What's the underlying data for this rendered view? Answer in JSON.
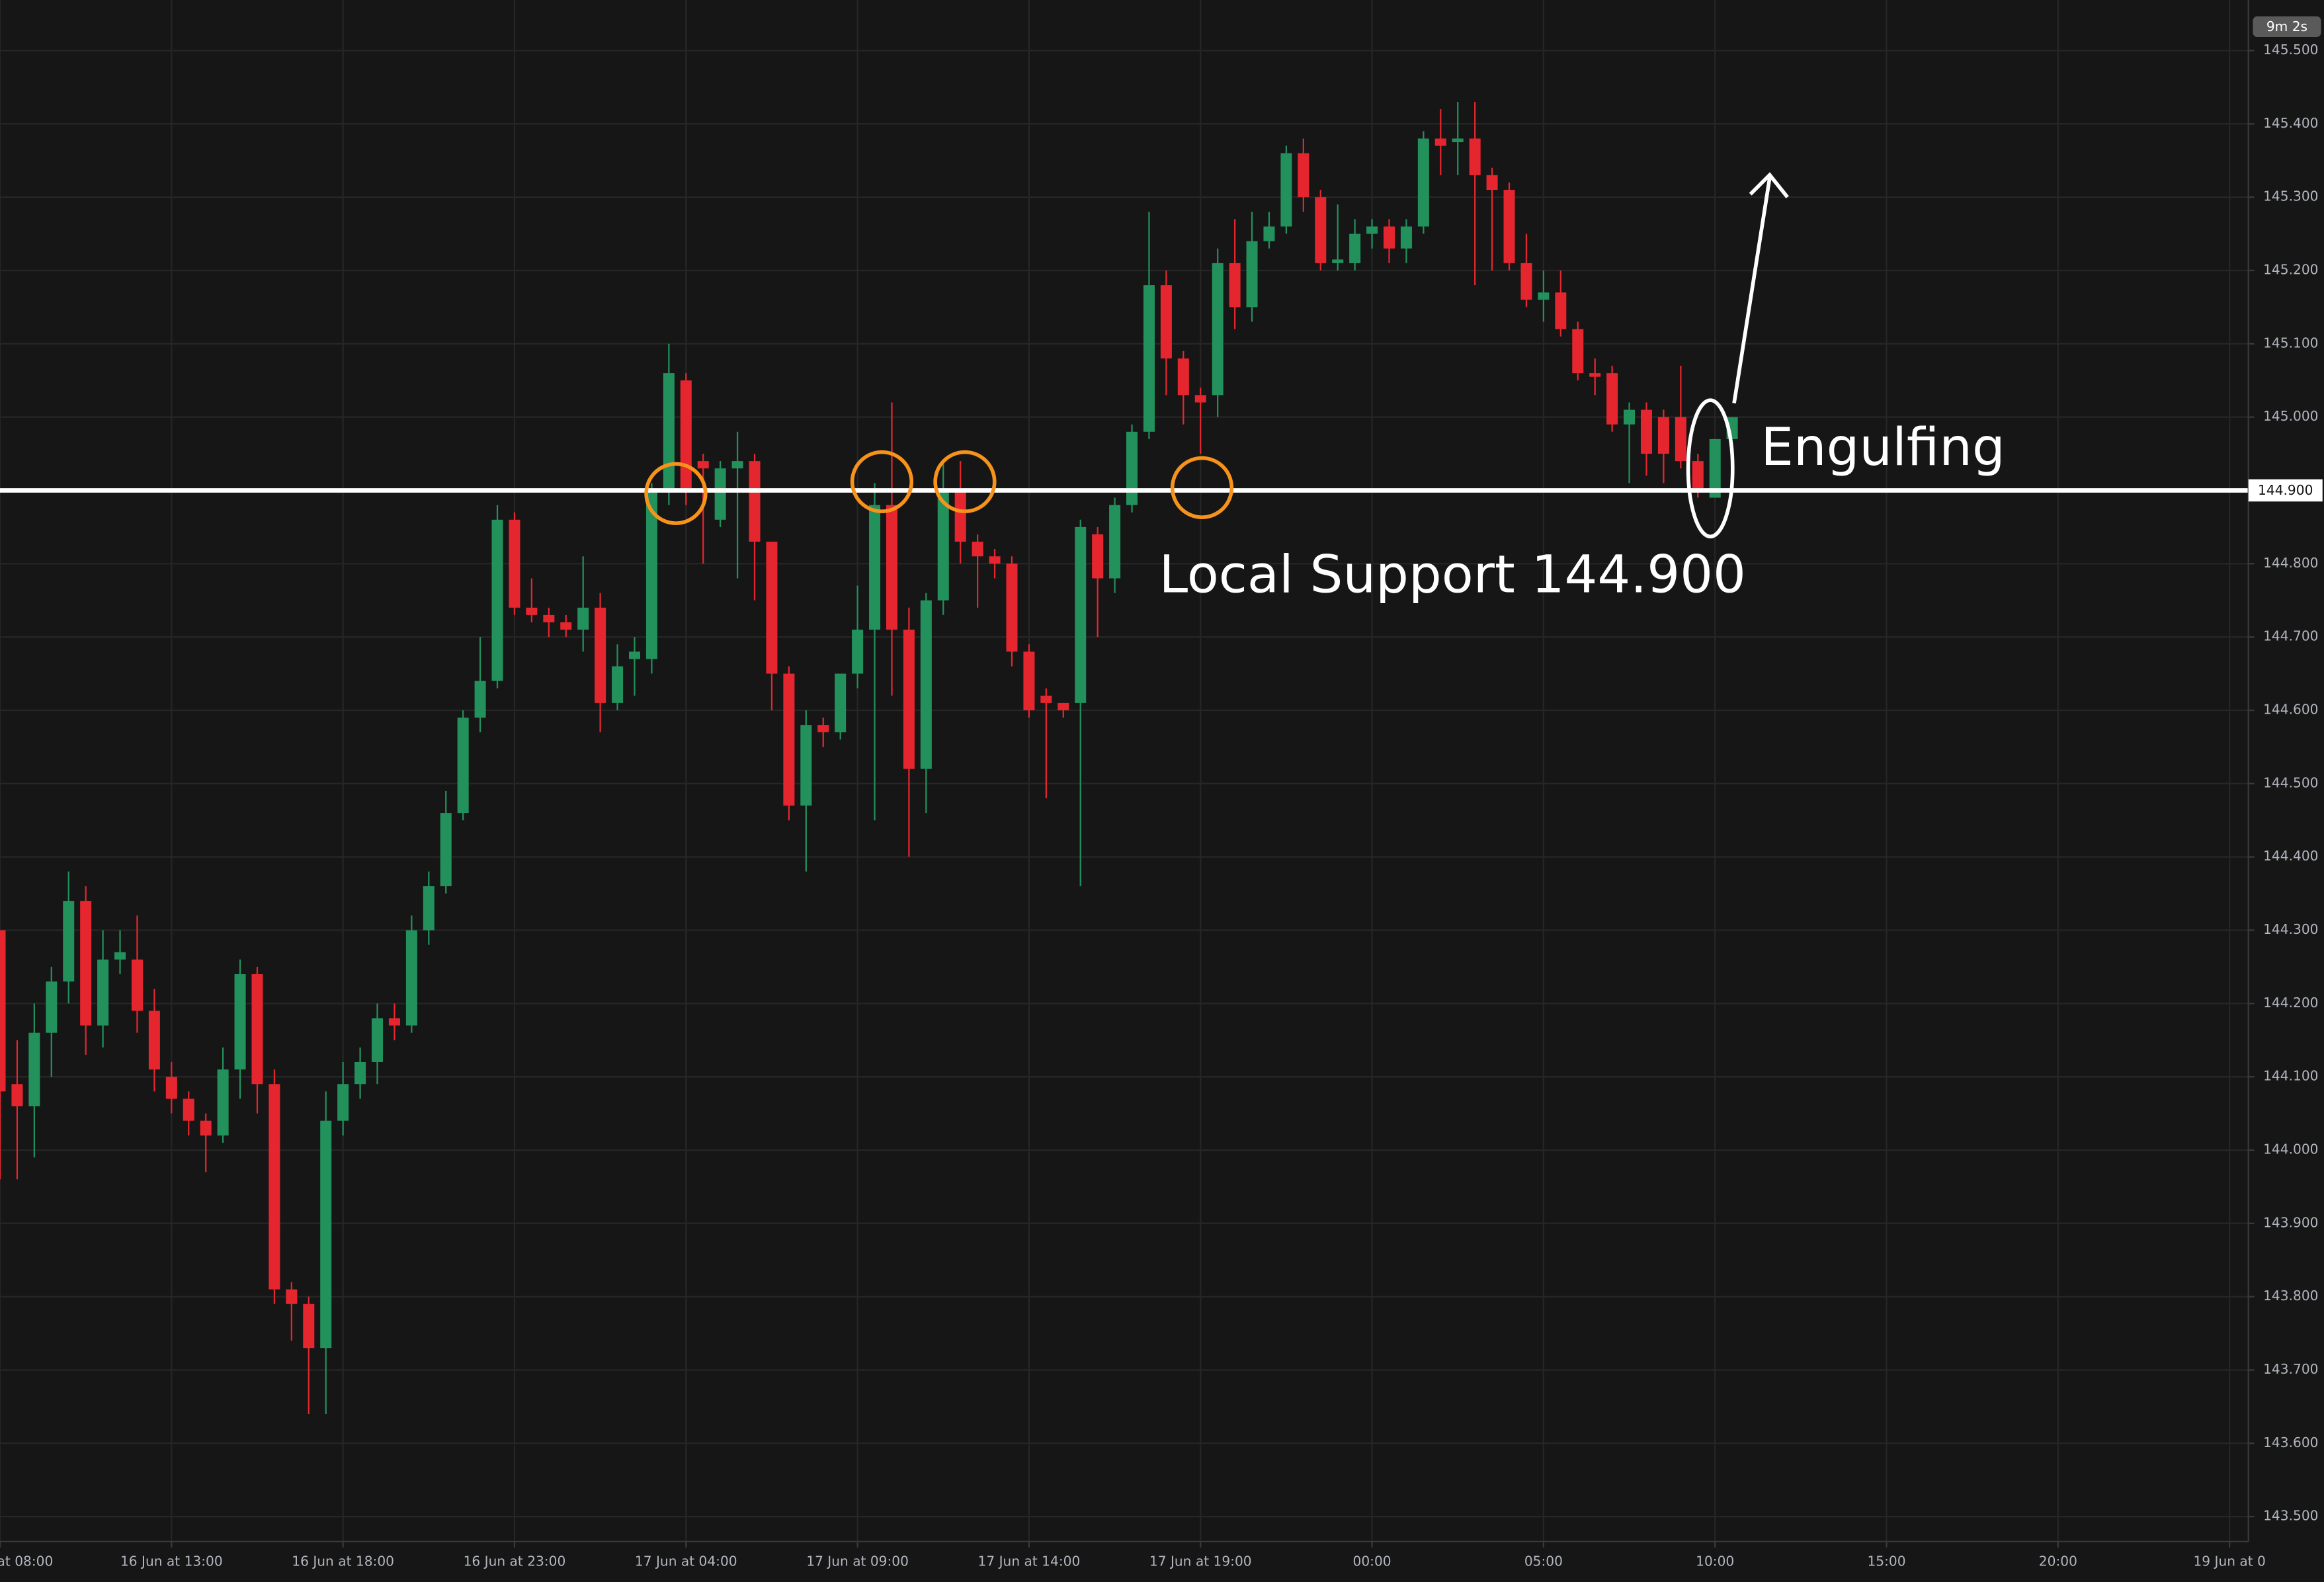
{
  "chart_data": {
    "type": "candlestick",
    "countdown": "9m 2s",
    "up_color": "#22915c",
    "down_color": "#e5262f",
    "grid": true,
    "support": {
      "value": 144.9,
      "label": "144.900"
    },
    "annotations": [
      "Local Support 144.900",
      "Engulfing"
    ],
    "xlim": [
      0,
      131.1
    ],
    "xticks": [
      {
        "value": 0,
        "label": "at 08:00"
      },
      {
        "value": 10,
        "label": "16 Jun at 13:00"
      },
      {
        "value": 20,
        "label": "16 Jun at 18:00"
      },
      {
        "value": 30,
        "label": "16 Jun at 23:00"
      },
      {
        "value": 40,
        "label": "17 Jun at 04:00"
      },
      {
        "value": 50,
        "label": "17 Jun at 09:00"
      },
      {
        "value": 60,
        "label": "17 Jun at 14:00"
      },
      {
        "value": 70,
        "label": "17 Jun at 19:00"
      },
      {
        "value": 80,
        "label": "00:00"
      },
      {
        "value": 90,
        "label": "05:00"
      },
      {
        "value": 100,
        "label": "10:00"
      },
      {
        "value": 110,
        "label": "15:00"
      },
      {
        "value": 120,
        "label": "20:00"
      },
      {
        "value": 130,
        "label": "19 Jun at 0"
      }
    ],
    "ylim": [
      143.466,
      145.569
    ],
    "yticks": [
      {
        "value": 143.5,
        "label": "143.500"
      },
      {
        "value": 143.6,
        "label": "143.600"
      },
      {
        "value": 143.7,
        "label": "143.700"
      },
      {
        "value": 143.8,
        "label": "143.800"
      },
      {
        "value": 143.9,
        "label": "143.900"
      },
      {
        "value": 144.0,
        "label": "144.000"
      },
      {
        "value": 144.1,
        "label": "144.100"
      },
      {
        "value": 144.2,
        "label": "144.200"
      },
      {
        "value": 144.3,
        "label": "144.300"
      },
      {
        "value": 144.4,
        "label": "144.400"
      },
      {
        "value": 144.5,
        "label": "144.500"
      },
      {
        "value": 144.6,
        "label": "144.600"
      },
      {
        "value": 144.7,
        "label": "144.700"
      },
      {
        "value": 144.8,
        "label": "144.800"
      },
      {
        "value": 145.0,
        "label": "145.000"
      },
      {
        "value": 145.1,
        "label": "145.100"
      },
      {
        "value": 145.2,
        "label": "145.200"
      },
      {
        "value": 145.3,
        "label": "145.300"
      },
      {
        "value": 145.4,
        "label": "145.400"
      },
      {
        "value": 145.5,
        "label": "145.500"
      }
    ],
    "open": [
      144.3,
      144.09,
      144.06,
      144.16,
      144.23,
      144.34,
      144.17,
      144.26,
      144.26,
      144.19,
      144.1,
      144.07,
      144.04,
      144.02,
      144.11,
      144.24,
      144.09,
      143.81,
      143.79,
      143.73,
      144.04,
      144.09,
      144.12,
      144.18,
      144.17,
      144.3,
      144.36,
      144.46,
      144.59,
      144.64,
      144.86,
      144.74,
      144.73,
      144.72,
      144.71,
      144.74,
      144.61,
      144.67,
      144.67,
      144.9,
      145.05,
      144.94,
      144.86,
      144.93,
      144.94,
      144.83,
      144.65,
      144.47,
      144.58,
      144.57,
      144.65,
      144.71,
      144.88,
      144.71,
      144.52,
      144.75,
      144.9,
      144.83,
      144.81,
      144.8,
      144.68,
      144.62,
      144.61,
      144.61,
      144.84,
      144.78,
      144.88,
      144.98,
      145.18,
      145.08,
      145.03,
      145.03,
      145.21,
      145.15,
      145.24,
      145.26,
      145.36,
      145.3,
      145.21,
      145.21,
      145.25,
      145.26,
      145.23,
      145.26,
      145.38,
      145.375,
      145.38,
      145.33,
      145.31,
      145.21,
      145.16,
      145.17,
      145.12,
      145.06,
      145.06,
      144.99,
      145.01,
      145.0,
      145.0,
      144.94,
      144.89,
      144.97
    ],
    "high": [
      144.3,
      144.15,
      144.2,
      144.25,
      144.38,
      144.36,
      144.3,
      144.3,
      144.32,
      144.22,
      144.12,
      144.08,
      144.05,
      144.14,
      144.26,
      144.25,
      144.11,
      143.82,
      143.8,
      144.08,
      144.12,
      144.14,
      144.2,
      144.2,
      144.32,
      144.38,
      144.49,
      144.6,
      144.7,
      144.88,
      144.87,
      144.78,
      144.74,
      144.73,
      144.81,
      144.76,
      144.69,
      144.7,
      144.91,
      145.1,
      145.06,
      144.95,
      144.94,
      144.98,
      144.95,
      144.83,
      144.66,
      144.6,
      144.59,
      144.65,
      144.77,
      144.91,
      145.02,
      144.74,
      144.76,
      144.94,
      144.94,
      144.84,
      144.82,
      144.81,
      144.69,
      144.63,
      144.61,
      144.86,
      144.85,
      144.89,
      144.99,
      145.28,
      145.2,
      145.09,
      145.04,
      145.23,
      145.27,
      145.28,
      145.28,
      145.37,
      145.38,
      145.31,
      145.29,
      145.27,
      145.27,
      145.27,
      145.27,
      145.39,
      145.42,
      145.43,
      145.43,
      145.34,
      145.32,
      145.25,
      145.2,
      145.2,
      145.13,
      145.08,
      145.07,
      145.02,
      145.02,
      145.01,
      145.07,
      144.95,
      144.97,
      145.0
    ],
    "low": [
      143.96,
      143.96,
      143.99,
      144.1,
      144.2,
      144.13,
      144.14,
      144.24,
      144.16,
      144.08,
      144.05,
      144.02,
      143.97,
      144.01,
      144.07,
      144.05,
      143.79,
      143.74,
      143.64,
      143.64,
      144.02,
      144.07,
      144.09,
      144.15,
      144.16,
      144.28,
      144.35,
      144.45,
      144.57,
      144.63,
      144.73,
      144.72,
      144.7,
      144.7,
      144.68,
      144.57,
      144.6,
      144.62,
      144.65,
      144.88,
      144.88,
      144.8,
      144.85,
      144.78,
      144.75,
      144.6,
      144.45,
      144.38,
      144.55,
      144.56,
      144.63,
      144.45,
      144.62,
      144.4,
      144.46,
      144.73,
      144.8,
      144.74,
      144.78,
      144.66,
      144.59,
      144.48,
      144.59,
      144.36,
      144.7,
      144.76,
      144.87,
      144.97,
      145.03,
      144.99,
      144.95,
      145.0,
      145.12,
      145.13,
      145.23,
      145.25,
      145.28,
      145.2,
      145.2,
      145.2,
      145.23,
      145.21,
      145.21,
      145.25,
      145.33,
      145.33,
      145.18,
      145.2,
      145.2,
      145.15,
      145.13,
      145.11,
      145.05,
      145.03,
      144.98,
      144.91,
      144.92,
      144.91,
      144.93,
      144.89,
      144.89,
      144.97
    ],
    "close": [
      144.08,
      144.06,
      144.16,
      144.23,
      144.34,
      144.17,
      144.26,
      144.27,
      144.19,
      144.11,
      144.07,
      144.04,
      144.02,
      144.11,
      144.24,
      144.09,
      143.81,
      143.79,
      143.73,
      144.04,
      144.09,
      144.12,
      144.18,
      144.17,
      144.3,
      144.36,
      144.46,
      144.59,
      144.64,
      144.86,
      144.74,
      144.73,
      144.72,
      144.71,
      144.74,
      144.61,
      144.66,
      144.68,
      144.9,
      145.06,
      144.9,
      144.93,
      144.93,
      144.94,
      144.83,
      144.65,
      144.47,
      144.58,
      144.57,
      144.65,
      144.71,
      144.88,
      144.71,
      144.52,
      144.75,
      144.9,
      144.83,
      144.81,
      144.8,
      144.68,
      144.6,
      144.61,
      144.6,
      144.85,
      144.78,
      144.88,
      144.98,
      145.18,
      145.08,
      145.03,
      145.02,
      145.21,
      145.15,
      145.24,
      145.26,
      145.36,
      145.3,
      145.21,
      145.215,
      145.25,
      145.26,
      145.23,
      145.26,
      145.38,
      145.37,
      145.38,
      145.33,
      145.31,
      145.21,
      145.16,
      145.17,
      145.12,
      145.06,
      145.055,
      144.99,
      145.01,
      144.95,
      144.95,
      144.94,
      144.9,
      144.97,
      145.0
    ]
  }
}
